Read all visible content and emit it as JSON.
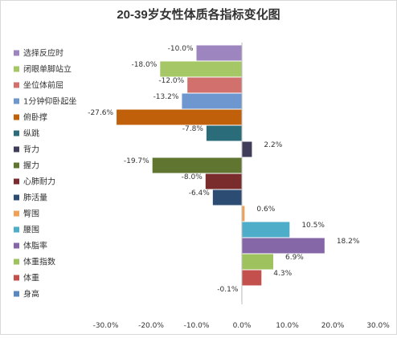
{
  "chart_data": {
    "type": "bar",
    "orientation": "horizontal",
    "title": "20-39岁女性体质各指标变化图",
    "categories": [
      "选择反应时",
      "闭眼单脚站立",
      "坐位体前屈",
      "1分钟仰卧起坐",
      "俯卧撑",
      "纵跳",
      "背力",
      "握力",
      "心肺耐力",
      "肺活量",
      "臀围",
      "腰围",
      "体脂率",
      "体重指数",
      "体重",
      "身高"
    ],
    "values": [
      -10.0,
      -18.0,
      -12.0,
      -13.2,
      -27.6,
      -7.8,
      2.2,
      -19.7,
      -8.0,
      -6.4,
      0.6,
      10.5,
      18.2,
      6.9,
      4.3,
      -0.1
    ],
    "value_labels": [
      "-10.0%",
      "-18.0%",
      "-12.0%",
      "-13.2%",
      "-27.6%",
      "-7.8%",
      "2.2%",
      "-19.7%",
      "-8.0%",
      "-6.4%",
      "0.6%",
      "10.5%",
      "18.2%",
      "6.9%",
      "4.3%",
      "-0.1%"
    ],
    "colors": [
      "#9d86c0",
      "#a5c766",
      "#d1706c",
      "#6e97cf",
      "#c0600a",
      "#2b6c7a",
      "#3f3d5a",
      "#5f7530",
      "#7a2c2c",
      "#2c4c73",
      "#efa15a",
      "#4eaec9",
      "#8567a8",
      "#9ec25e",
      "#c4504d",
      "#5b86bf"
    ],
    "xlim": [
      -30,
      30
    ],
    "xticks": [
      -30,
      -20,
      -10,
      0,
      10,
      20,
      30
    ],
    "xtick_labels": [
      "-30.0%",
      "-20.0%",
      "-10.0%",
      "0.0%",
      "10.0%",
      "20.0%",
      "30.0%"
    ],
    "legend_position": "left",
    "grid": false
  }
}
